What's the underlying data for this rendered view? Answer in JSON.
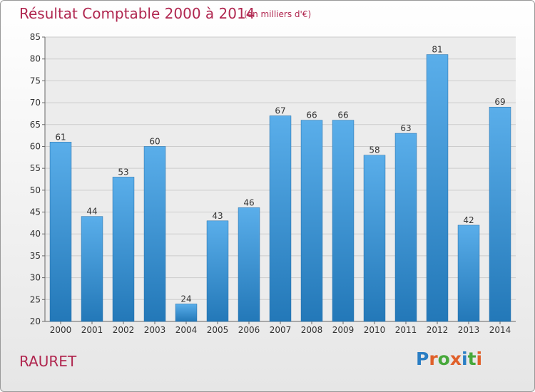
{
  "title": "Résultat Comptable 2000 à 2014",
  "subtitle": "(en milliers d'€)",
  "city": "RAURET",
  "logo": {
    "letters": [
      "P",
      "r",
      "o",
      "x",
      "i",
      "t",
      "i"
    ],
    "colors": [
      "#2a7ec4",
      "#e0602a",
      "#47a83b",
      "#e0602a",
      "#2a7ec4",
      "#47a83b",
      "#e0602a"
    ]
  },
  "colors": {
    "bar_top": "#5aaeea",
    "bar_bottom": "#2378b8",
    "grid": "#cccccc",
    "title": "#b0264f"
  },
  "chart_data": {
    "type": "bar",
    "categories": [
      "2000",
      "2001",
      "2002",
      "2003",
      "2004",
      "2005",
      "2006",
      "2007",
      "2008",
      "2009",
      "2010",
      "2011",
      "2012",
      "2013",
      "2014"
    ],
    "values": [
      61,
      44,
      53,
      60,
      24,
      43,
      46,
      67,
      66,
      66,
      58,
      63,
      81,
      42,
      69
    ],
    "ylim": [
      20,
      85
    ],
    "yticks": [
      20,
      25,
      30,
      35,
      40,
      45,
      50,
      55,
      60,
      65,
      70,
      75,
      80,
      85
    ],
    "grid": true,
    "xlabel": "",
    "ylabel": ""
  }
}
